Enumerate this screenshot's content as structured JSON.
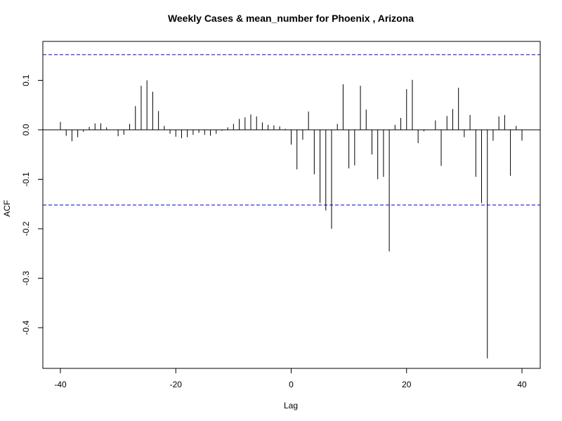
{
  "chart_data": {
    "type": "bar",
    "title": "Weekly Cases & mean_number for Phoenix , Arizona",
    "xlabel": "Lag",
    "ylabel": "ACF",
    "xlim": [
      -40,
      40
    ],
    "ylim": [
      -0.46,
      0.15
    ],
    "x_ticks": [
      -40,
      -20,
      0,
      20,
      40
    ],
    "y_ticks": [
      -0.4,
      -0.3,
      -0.2,
      -0.1,
      0.0,
      0.1
    ],
    "y_tick_labels": [
      "-0.4",
      "-0.3",
      "-0.2",
      "-0.1",
      "0.0",
      "0.1"
    ],
    "confidence_bounds": [
      0.152,
      -0.152
    ],
    "colors": {
      "bars": "#000000",
      "bounds": "#0000cc",
      "zero_line": "#000000"
    },
    "grid": false,
    "legend": "none",
    "x": [
      -40,
      -39,
      -38,
      -37,
      -36,
      -35,
      -34,
      -33,
      -32,
      -31,
      -30,
      -29,
      -28,
      -27,
      -26,
      -25,
      -24,
      -23,
      -22,
      -21,
      -20,
      -19,
      -18,
      -17,
      -16,
      -15,
      -14,
      -13,
      -12,
      -11,
      -10,
      -9,
      -8,
      -7,
      -6,
      -5,
      -4,
      -3,
      -2,
      -1,
      0,
      1,
      2,
      3,
      4,
      5,
      6,
      7,
      8,
      9,
      10,
      11,
      12,
      13,
      14,
      15,
      16,
      17,
      18,
      19,
      20,
      21,
      22,
      23,
      24,
      25,
      26,
      27,
      28,
      29,
      30,
      31,
      32,
      33,
      34,
      35,
      36,
      37,
      38,
      39,
      40
    ],
    "values": [
      0.016,
      -0.012,
      -0.023,
      -0.015,
      -0.004,
      0.006,
      0.013,
      0.013,
      0.005,
      0.0,
      -0.013,
      -0.01,
      0.012,
      0.048,
      0.089,
      0.1,
      0.077,
      0.038,
      0.008,
      -0.008,
      -0.014,
      -0.017,
      -0.015,
      -0.01,
      -0.006,
      -0.01,
      -0.012,
      -0.008,
      -0.002,
      0.005,
      0.012,
      0.022,
      0.025,
      0.031,
      0.027,
      0.015,
      0.01,
      0.009,
      0.007,
      0.002,
      -0.03,
      -0.08,
      -0.02,
      0.037,
      -0.09,
      -0.148,
      -0.163,
      -0.2,
      0.012,
      0.092,
      -0.078,
      -0.072,
      0.089,
      0.041,
      -0.05,
      -0.1,
      -0.095,
      -0.246,
      0.01,
      0.024,
      0.082,
      0.101,
      -0.027,
      -0.003,
      0.0,
      0.019,
      -0.073,
      0.028,
      0.042,
      0.085,
      -0.015,
      0.03,
      -0.095,
      -0.148,
      -0.462,
      -0.022,
      0.027,
      0.03,
      -0.093,
      0.008,
      -0.022
    ]
  }
}
